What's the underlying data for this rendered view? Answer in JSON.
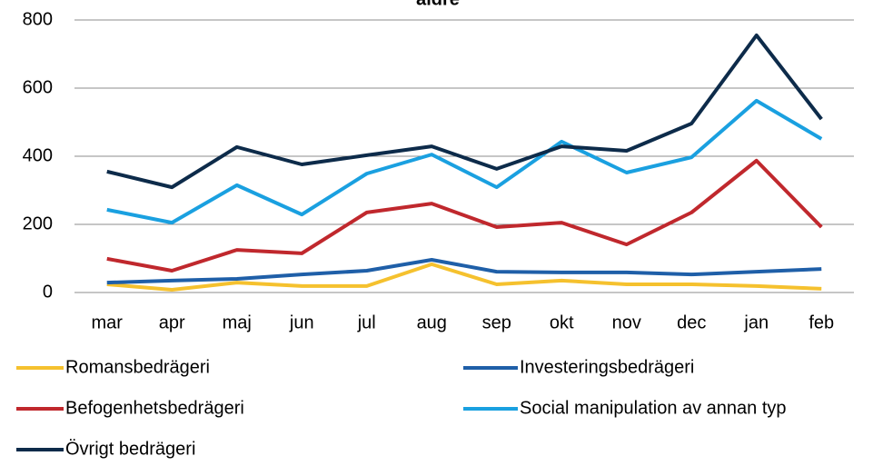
{
  "chart_data": {
    "type": "line",
    "title": "äldre",
    "categories": [
      "mar",
      "apr",
      "maj",
      "jun",
      "jul",
      "aug",
      "sep",
      "okt",
      "nov",
      "dec",
      "jan",
      "feb"
    ],
    "series": [
      {
        "name": "Romansbedrägeri",
        "color": "#f5c12e",
        "values": [
          24,
          8,
          29,
          19,
          19,
          83,
          24,
          35,
          24,
          24,
          19,
          11
        ]
      },
      {
        "name": "Investeringsbedrägeri",
        "color": "#1f5fa8",
        "values": [
          29,
          35,
          40,
          53,
          64,
          96,
          61,
          59,
          59,
          53,
          61,
          69
        ]
      },
      {
        "name": "Befogenhetsbedrägeri",
        "color": "#c0282d",
        "values": [
          99,
          64,
          125,
          115,
          235,
          261,
          192,
          205,
          141,
          235,
          387,
          192
        ]
      },
      {
        "name": "Social manipulation av annan typ",
        "color": "#1aa0e0",
        "values": [
          243,
          205,
          315,
          229,
          349,
          405,
          309,
          443,
          352,
          397,
          563,
          451
        ]
      },
      {
        "name": "Övrigt bedrägeri",
        "color": "#0d2b4a",
        "values": [
          355,
          309,
          427,
          376,
          403,
          429,
          363,
          429,
          416,
          496,
          755,
          509
        ]
      }
    ],
    "ylim": [
      0,
      800
    ],
    "yticks": [
      0,
      200,
      400,
      600,
      800
    ],
    "grid": true
  }
}
